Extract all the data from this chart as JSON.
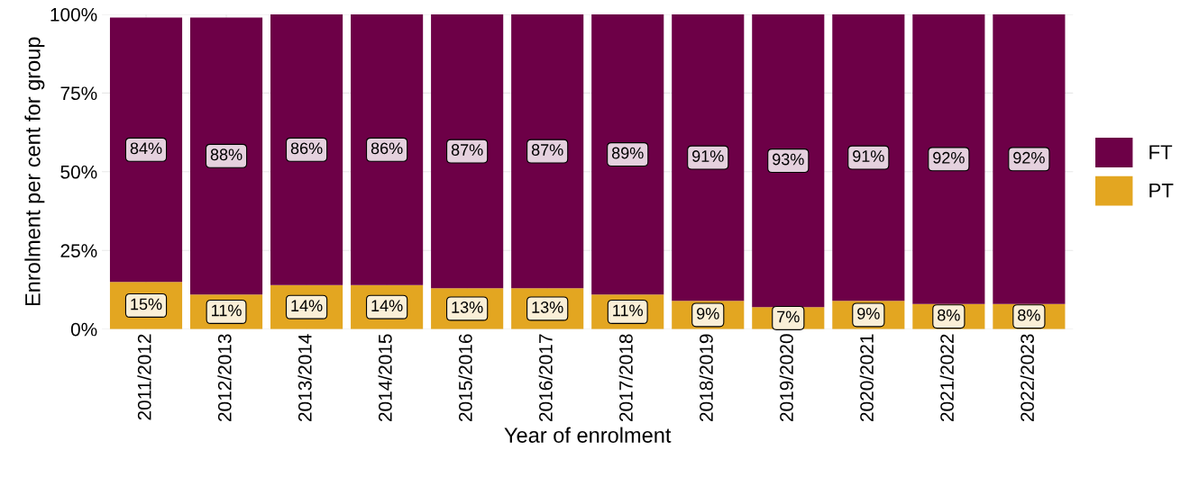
{
  "chart_data": {
    "type": "bar",
    "stacked": true,
    "xlabel": "Year of enrolment",
    "ylabel": "Enrolment per cent for group",
    "categories": [
      "2011/2012",
      "2012/2013",
      "2013/2014",
      "2014/2015",
      "2015/2016",
      "2016/2017",
      "2017/2018",
      "2018/2019",
      "2019/2020",
      "2020/2021",
      "2021/2022",
      "2022/2023"
    ],
    "series": [
      {
        "name": "PT",
        "color": "#e3a621",
        "values": [
          15,
          11,
          14,
          14,
          13,
          13,
          11,
          9,
          7,
          9,
          8,
          8
        ],
        "value_labels": [
          "15%",
          "11%",
          "14%",
          "14%",
          "13%",
          "13%",
          "11%",
          "9%",
          "7%",
          "9%",
          "8%",
          "8%"
        ]
      },
      {
        "name": "FT",
        "color": "#6d0047",
        "values": [
          84,
          88,
          86,
          86,
          87,
          87,
          89,
          91,
          93,
          91,
          92,
          92
        ],
        "value_labels": [
          "84%",
          "88%",
          "86%",
          "86%",
          "87%",
          "87%",
          "89%",
          "91%",
          "93%",
          "91%",
          "92%",
          "92%"
        ]
      }
    ],
    "ylim": [
      0,
      100
    ],
    "yticks": [
      {
        "value": 0,
        "label": "0%"
      },
      {
        "value": 25,
        "label": "25%"
      },
      {
        "value": 50,
        "label": "50%"
      },
      {
        "value": 75,
        "label": "75%"
      },
      {
        "value": 100,
        "label": "100%"
      }
    ],
    "grid": true,
    "legend": "right"
  }
}
